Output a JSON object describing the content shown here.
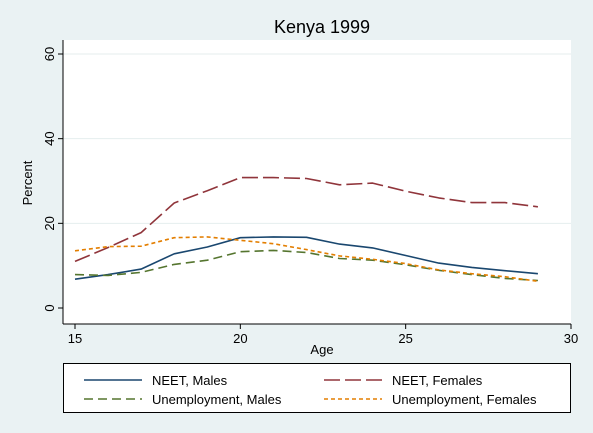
{
  "chart_data": {
    "type": "line",
    "title": "Kenya 1999",
    "xlabel": "Age",
    "ylabel": "Percent",
    "xlim": [
      15,
      30
    ],
    "ylim": [
      0,
      60
    ],
    "xticks": [
      15,
      20,
      25,
      30
    ],
    "yticks": [
      0,
      20,
      40,
      60
    ],
    "grid": true,
    "legend_position": "bottom",
    "x": [
      15,
      16,
      17,
      18,
      19,
      20,
      21,
      22,
      23,
      24,
      25,
      26,
      27,
      28,
      29
    ],
    "series": [
      {
        "name": "NEET, Males",
        "color": "#1a476f",
        "dash": "solid",
        "values": [
          6.8,
          7.9,
          9.2,
          12.8,
          14.4,
          16.6,
          16.8,
          16.7,
          15.1,
          14.2,
          12.4,
          10.6,
          9.6,
          8.8,
          8.1
        ]
      },
      {
        "name": "NEET, Females",
        "color": "#90353b",
        "dash": "longdash",
        "values": [
          11.0,
          14.3,
          17.8,
          24.8,
          27.7,
          30.8,
          30.8,
          30.6,
          29.1,
          29.5,
          27.6,
          26.0,
          24.9,
          24.9,
          23.9
        ]
      },
      {
        "name": "Unemployment, Males",
        "color": "#55752f",
        "dash": "dash",
        "values": [
          7.9,
          7.7,
          8.4,
          10.3,
          11.3,
          13.3,
          13.6,
          13.1,
          11.7,
          11.3,
          10.2,
          8.9,
          7.9,
          7.0,
          6.5
        ]
      },
      {
        "name": "Unemployment, Females",
        "color": "#e37e00",
        "dash": "shortdash",
        "values": [
          13.5,
          14.5,
          14.6,
          16.6,
          16.8,
          16.0,
          15.2,
          13.8,
          12.3,
          11.5,
          10.5,
          9.0,
          8.1,
          7.4,
          6.3
        ]
      }
    ]
  }
}
